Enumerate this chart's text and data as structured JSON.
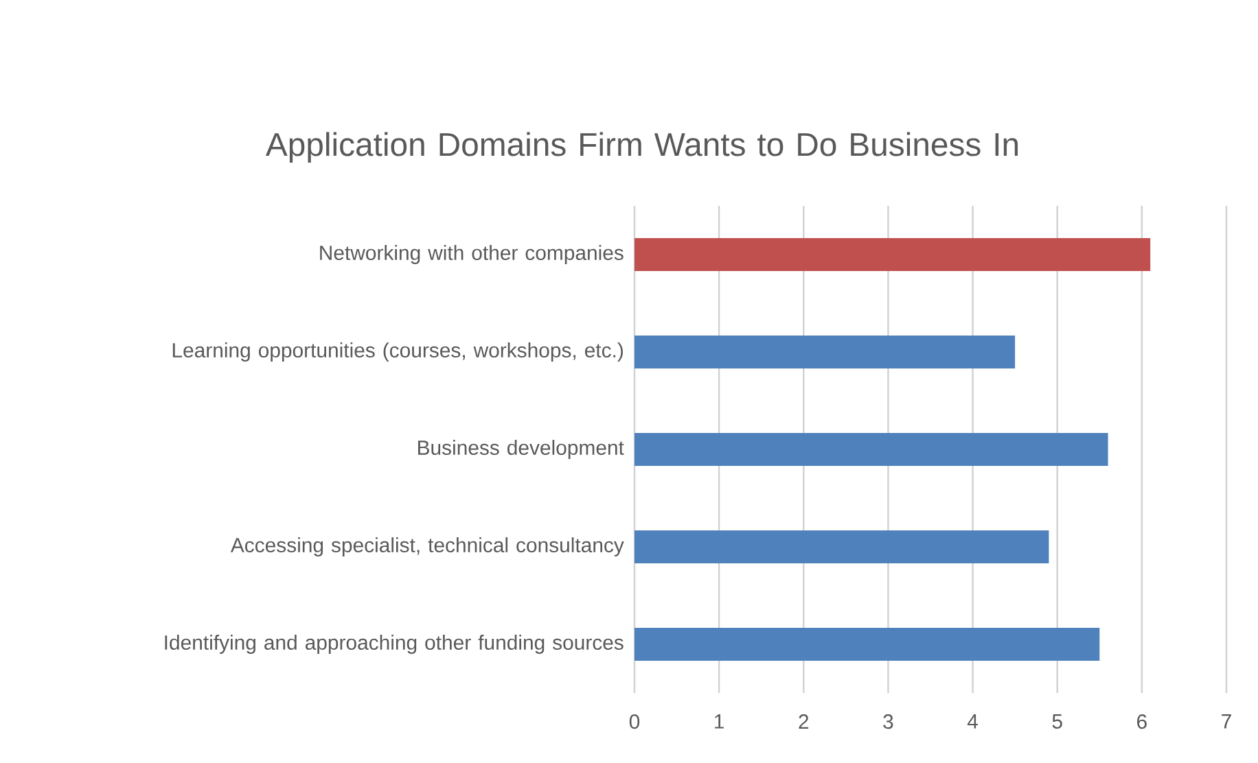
{
  "chart_data": {
    "type": "bar",
    "orientation": "horizontal",
    "title": "Application Domains Firm Wants to Do Business In",
    "categories": [
      "Networking with other companies",
      "Learning opportunities (courses, workshops, etc.)",
      "Business development",
      "Accessing specialist, technical consultancy",
      "Identifying and approaching other funding sources"
    ],
    "values": [
      6.1,
      4.5,
      5.6,
      4.9,
      5.5
    ],
    "colors": [
      "#c0504d",
      "#4f81bd",
      "#4f81bd",
      "#4f81bd",
      "#4f81bd"
    ],
    "xlim": [
      0,
      7
    ],
    "xticks": [
      0,
      1,
      2,
      3,
      4,
      5,
      6,
      7
    ],
    "grid": "x"
  }
}
